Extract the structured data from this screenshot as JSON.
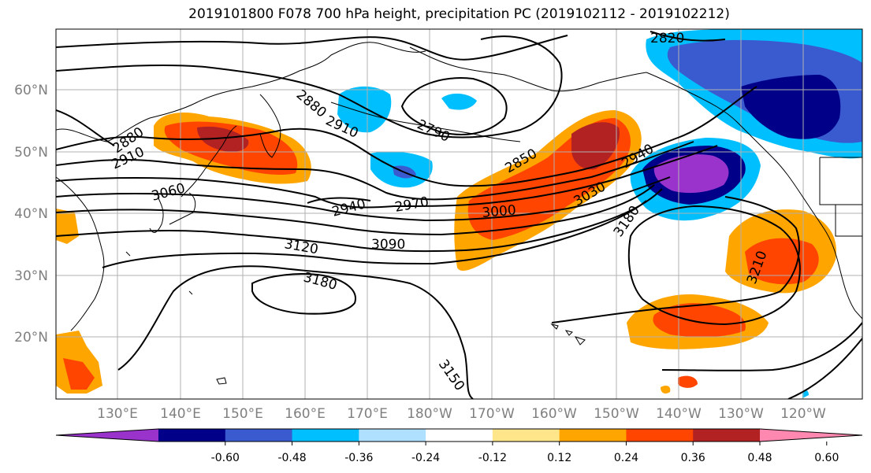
{
  "title": "2019101800 F078 700 hPa height, precipitation PC (2019102112 - 2019102212)",
  "lat_labels": [
    "60°N",
    "50°N",
    "40°N",
    "30°N",
    "20°N"
  ],
  "lon_labels": [
    "130°E",
    "140°E",
    "150°E",
    "160°E",
    "170°E",
    "180°W",
    "170°W",
    "160°W",
    "150°W",
    "140°W",
    "130°W",
    "120°W"
  ],
  "contour_labels": [
    "2820",
    "2880",
    "2910",
    "2790",
    "2880",
    "2910",
    "3060",
    "2940",
    "2970",
    "2850",
    "2940",
    "3000",
    "3030",
    "3180",
    "3120",
    "3090",
    "3180",
    "3210",
    "3150"
  ],
  "colorbar": {
    "ticks": [
      "-0.60",
      "-0.48",
      "-0.36",
      "-0.24",
      "-0.12",
      "0.12",
      "0.24",
      "0.36",
      "0.48",
      "0.60"
    ],
    "colors": [
      "#9933cc",
      "#000088",
      "#3a5bd0",
      "#00bfff",
      "#b0e0ff",
      "#ffffff",
      "#ffe68a",
      "#ffa500",
      "#ff4500",
      "#b22222",
      "#ff88b0"
    ]
  },
  "chart_data": {
    "type": "heatmap",
    "variable": "700 hPa height, precipitation PC",
    "init": "2019101800",
    "forecast_hour": "F078",
    "valid_range": "2019102112 - 2019102212",
    "lat_ticks": [
      60,
      50,
      40,
      30,
      20
    ],
    "lon_ticks": [
      130,
      140,
      150,
      160,
      170,
      180,
      -170,
      -160,
      -150,
      -140,
      -130,
      -120
    ],
    "contour_levels": [
      2790,
      2820,
      2850,
      2880,
      2910,
      2940,
      2970,
      3000,
      3030,
      3060,
      3090,
      3120,
      3150,
      3180,
      3210
    ],
    "color_levels": [
      -0.6,
      -0.48,
      -0.36,
      -0.24,
      -0.12,
      0.12,
      0.24,
      0.36,
      0.48,
      0.6
    ]
  }
}
